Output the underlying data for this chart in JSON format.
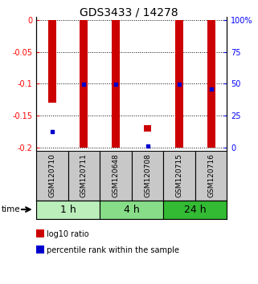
{
  "title": "GDS3433 / 14278",
  "samples": [
    "GSM120710",
    "GSM120711",
    "GSM120648",
    "GSM120708",
    "GSM120715",
    "GSM120716"
  ],
  "groups": [
    {
      "label": "1 h",
      "indices": [
        0,
        1
      ],
      "color": "#bbeebb"
    },
    {
      "label": "4 h",
      "indices": [
        2,
        3
      ],
      "color": "#88dd88"
    },
    {
      "label": "24 h",
      "indices": [
        4,
        5
      ],
      "color": "#33bb33"
    }
  ],
  "log10_ratio": [
    -0.13,
    -0.2,
    -0.2,
    -0.175,
    -0.2,
    -0.2
  ],
  "bar_top": [
    0.0,
    0.0,
    0.0,
    -0.165,
    0.0,
    0.0
  ],
  "percentile_rank": [
    -0.175,
    -0.101,
    -0.101,
    -0.198,
    -0.101,
    -0.108
  ],
  "ylim": [
    -0.205,
    0.005
  ],
  "yticks_left": [
    0.0,
    -0.05,
    -0.1,
    -0.15,
    -0.2
  ],
  "yticks_left_labels": [
    "0",
    "-0.05",
    "-0.1",
    "-0.15",
    "-0.2"
  ],
  "yticks_right_pos": [
    0.0,
    -0.05,
    -0.1,
    -0.15,
    -0.2
  ],
  "yticks_right_labels": [
    "100%",
    "75",
    "50",
    "25",
    "0"
  ],
  "bar_color": "#cc0000",
  "dot_color": "#0000cc",
  "bar_width": 0.25,
  "label_area_color": "#c8c8c8",
  "time_label": "time",
  "legend_ratio": "log10 ratio",
  "legend_pct": "percentile rank within the sample",
  "title_fontsize": 10,
  "tick_fontsize": 7,
  "sample_fontsize": 6.5,
  "group_fontsize": 9
}
